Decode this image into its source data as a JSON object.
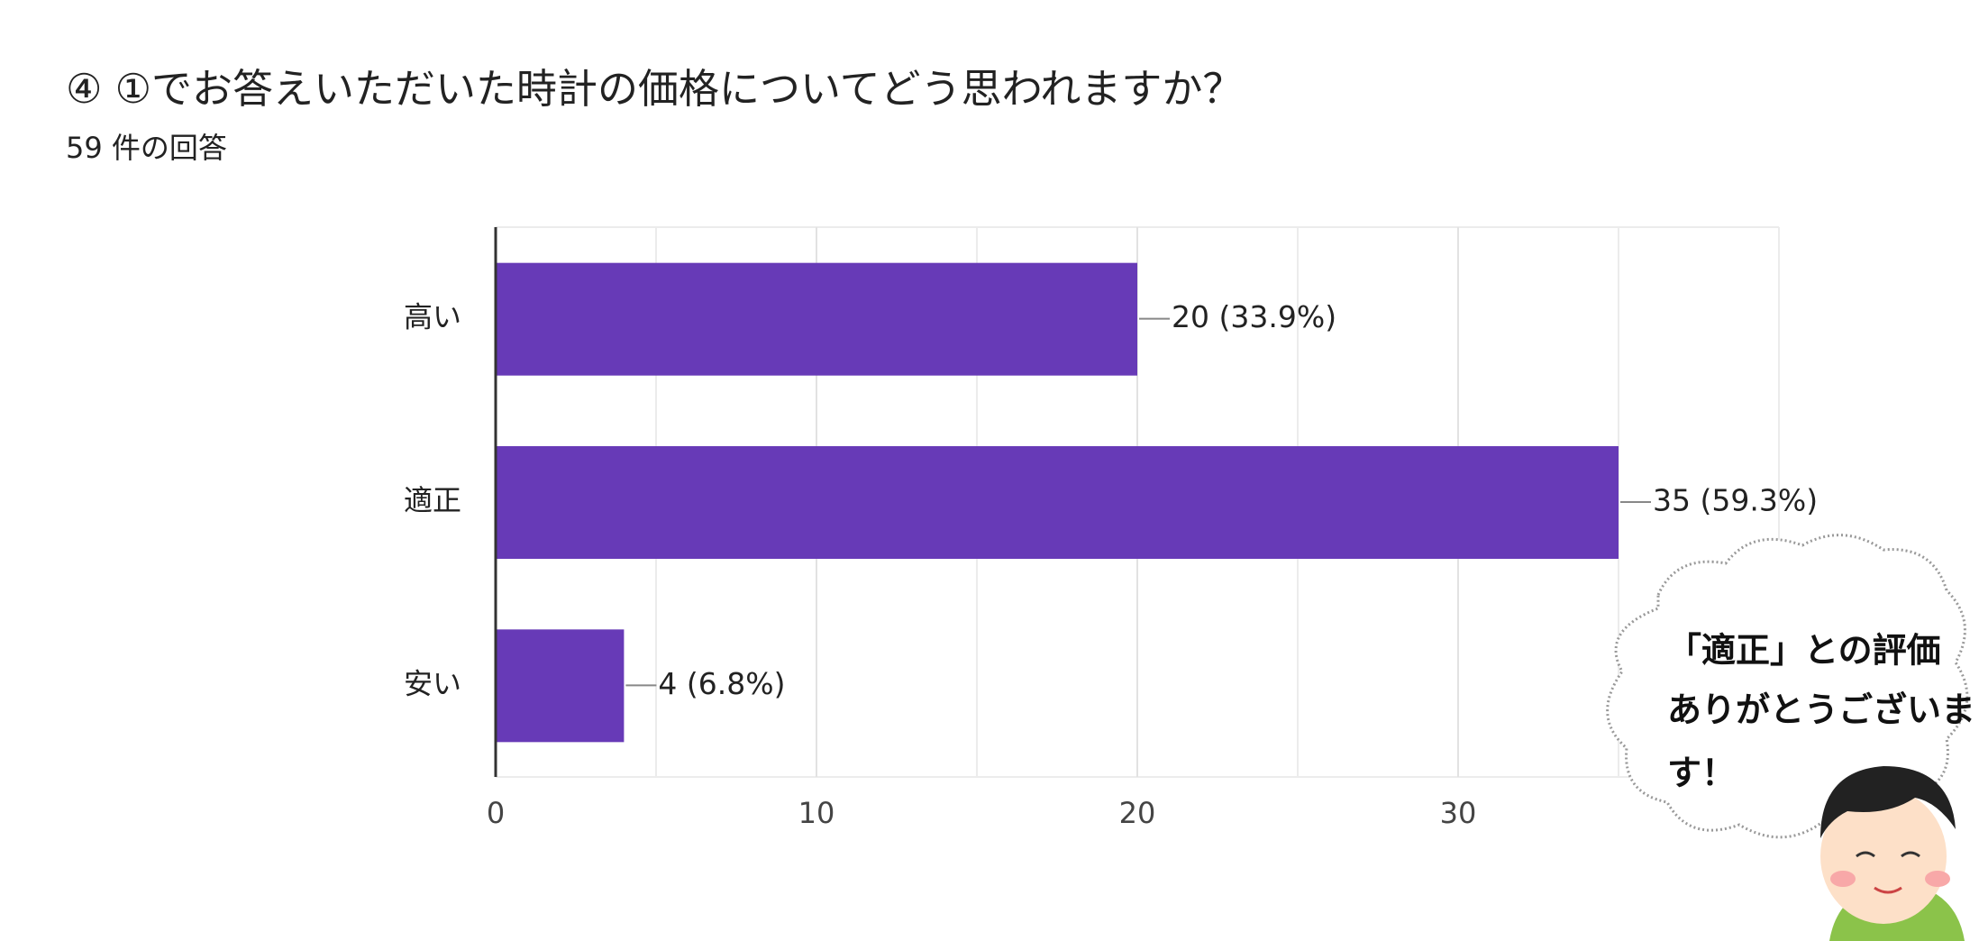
{
  "chart_data": {
    "type": "bar",
    "orientation": "horizontal",
    "title": "④ ①でお答えいただいた時計の価格についてどう思われますか？",
    "subtitle": "59 件の回答",
    "categories": [
      "高い",
      "適正",
      "安い"
    ],
    "values": [
      20,
      35,
      4
    ],
    "value_labels": [
      "20 (33.9%)",
      "35 (59.3%)",
      "4 (6.8%)"
    ],
    "color": "#673ab7",
    "xlim": [
      0,
      40
    ],
    "xticks": [
      0,
      10,
      20,
      30
    ],
    "xminor": [
      5,
      15,
      25,
      35,
      40
    ],
    "grid": true,
    "annotation": [
      "「適正」との評価",
      "ありがとうございま",
      "す！"
    ]
  }
}
